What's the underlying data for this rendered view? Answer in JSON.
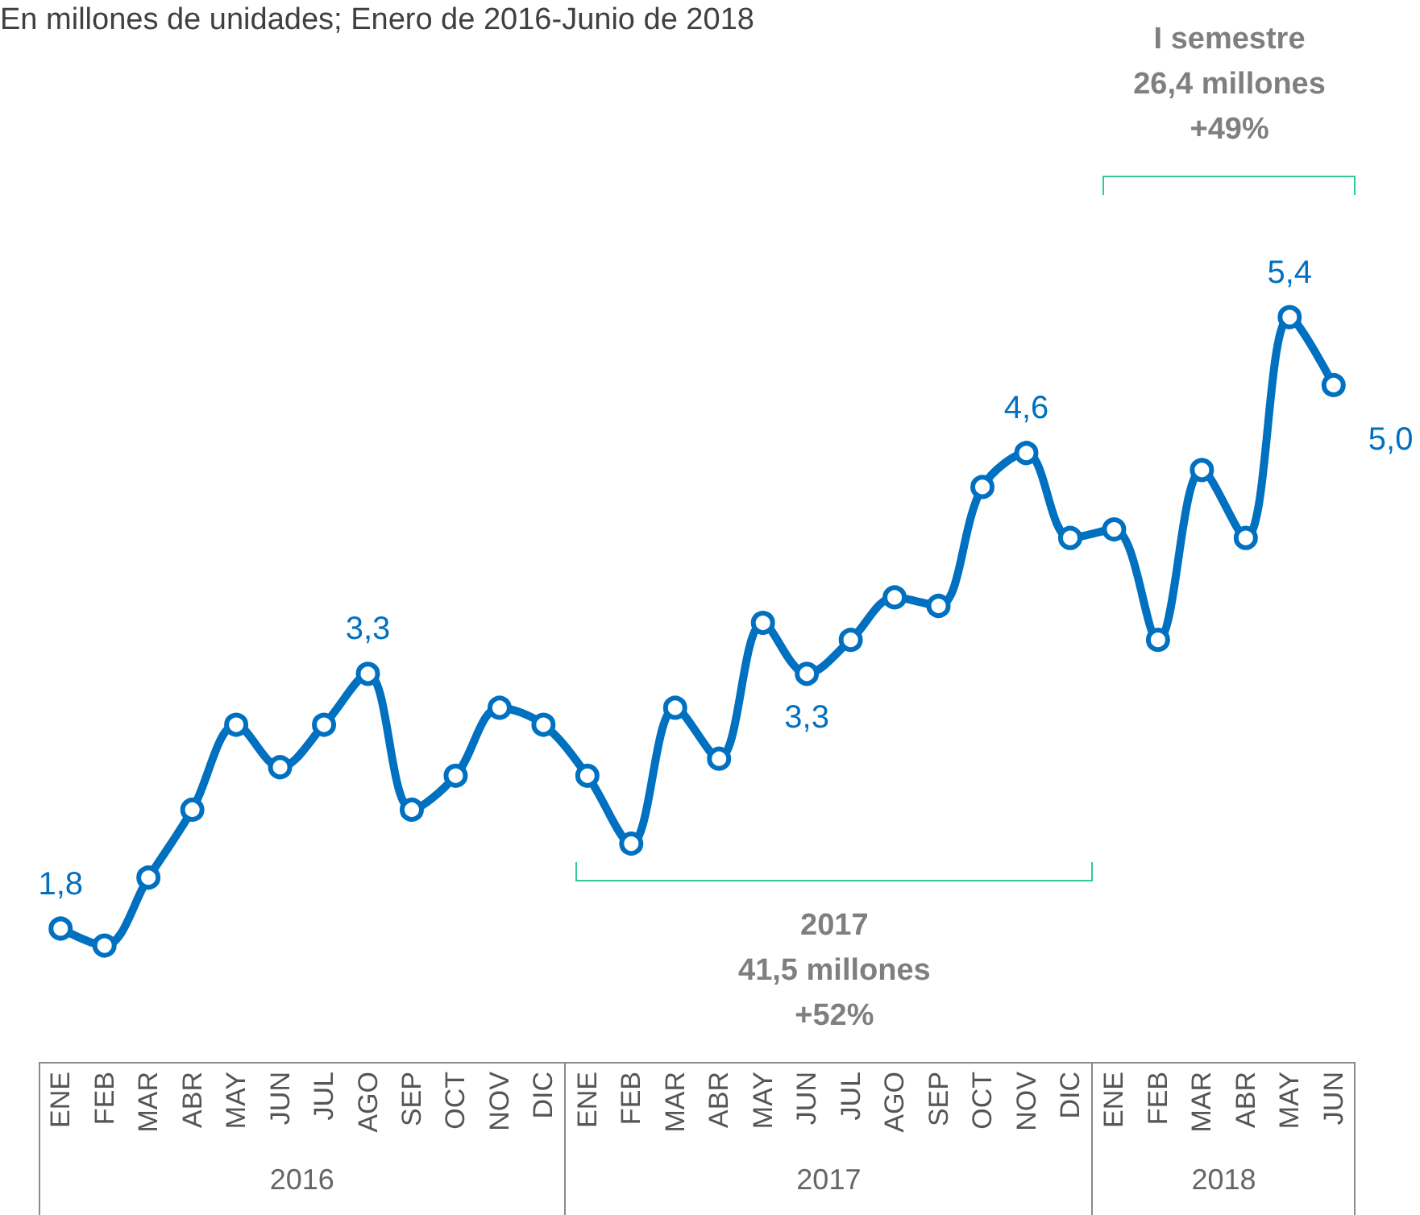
{
  "chart_data": {
    "type": "line",
    "title": "En millones de unidades; Enero de 2016-Junio de 2018",
    "categories": [
      "ENE",
      "FEB",
      "MAR",
      "ABR",
      "MAY",
      "JUN",
      "JUL",
      "AGO",
      "SEP",
      "OCT",
      "NOV",
      "DIC",
      "ENE",
      "FEB",
      "MAR",
      "ABR",
      "MAY",
      "JUN",
      "JUL",
      "AGO",
      "SEP",
      "OCT",
      "NOV",
      "DIC",
      "ENE",
      "FEB",
      "MAR",
      "ABR",
      "MAY",
      "JUN"
    ],
    "values": [
      1.8,
      1.7,
      2.1,
      2.5,
      3.0,
      2.75,
      3.0,
      3.3,
      2.5,
      2.7,
      3.1,
      3.0,
      2.7,
      2.3,
      3.1,
      2.8,
      3.6,
      3.3,
      3.5,
      3.75,
      3.7,
      4.4,
      4.6,
      4.1,
      4.15,
      3.5,
      4.5,
      4.1,
      5.4,
      5.0
    ],
    "value_labels": [
      "1,8",
      null,
      null,
      null,
      null,
      null,
      null,
      "3,3",
      null,
      null,
      null,
      null,
      null,
      null,
      null,
      null,
      null,
      "3,3",
      null,
      null,
      null,
      null,
      "4,6",
      null,
      null,
      null,
      null,
      null,
      "5,4",
      "5,0"
    ],
    "color": "#0070c0",
    "marker": "circle",
    "line_style": "solid",
    "tick_labels": "x",
    "annotations": [
      "2016",
      "2017",
      "2018",
      "2017\n41,5 millones\n+52%",
      "I semestre\n26,4 millones\n+49%"
    ]
  }
}
